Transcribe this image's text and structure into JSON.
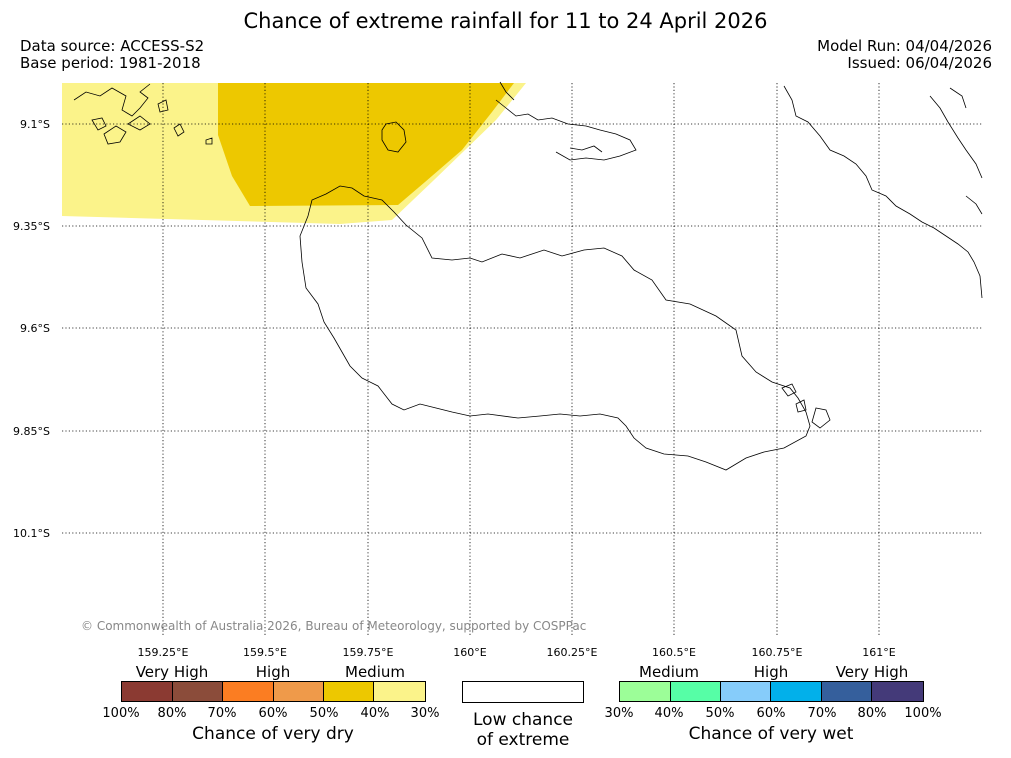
{
  "title": "Chance of extreme rainfall for 11 to 24 April 2026",
  "data_source": "Data source: ACCESS-S2",
  "base_period": "Base period: 1981-2018",
  "model_run": "Model Run: 04/04/2026",
  "issued": "Issued: 06/04/2026",
  "credit": "© Commonwealth of Australia 2026, Bureau of Meteorology, supported by COSPPac",
  "map": {
    "lat_labels": [
      "9.1°S",
      "9.35°S",
      "9.6°S",
      "9.85°S",
      "10.1°S"
    ],
    "lon_labels": [
      "159.25°E",
      "159.5°E",
      "159.75°E",
      "160°E",
      "160.25°E",
      "160.5°E",
      "160.75°E",
      "161°E"
    ],
    "shaded_regions": [
      {
        "category": "Medium",
        "range": "30-40%",
        "color": "#fbf38a"
      },
      {
        "category": "Medium",
        "range": "40-50%",
        "color": "#edc800"
      }
    ],
    "coastline_color": "#000000",
    "gridline_color": "#000000"
  },
  "legend_dry": {
    "title": "Chance of very dry",
    "categories": [
      "Very High",
      "High",
      "Medium"
    ],
    "colors": [
      "#8b3a32",
      "#8b4c3a",
      "#fb7d22",
      "#ef9a4a",
      "#edc800",
      "#fbf38a"
    ],
    "ticks": [
      "100%",
      "80%",
      "70%",
      "60%",
      "50%",
      "40%",
      "30%"
    ]
  },
  "legend_neutral": {
    "line1": "Low chance",
    "line2": "of extreme"
  },
  "legend_wet": {
    "title": "Chance of very wet",
    "categories": [
      "Medium",
      "High",
      "Very High"
    ],
    "colors": [
      "#9cfe98",
      "#56fea6",
      "#86ccfa",
      "#02b0ea",
      "#355f9c",
      "#443a79"
    ],
    "ticks": [
      "30%",
      "40%",
      "50%",
      "60%",
      "70%",
      "80%",
      "100%"
    ]
  }
}
